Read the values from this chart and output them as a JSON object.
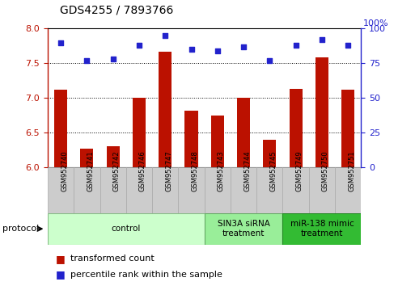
{
  "title": "GDS4255 / 7893766",
  "samples": [
    "GSM952740",
    "GSM952741",
    "GSM952742",
    "GSM952746",
    "GSM952747",
    "GSM952748",
    "GSM952743",
    "GSM952744",
    "GSM952745",
    "GSM952749",
    "GSM952750",
    "GSM952751"
  ],
  "transformed_count": [
    7.12,
    6.27,
    6.3,
    7.0,
    7.67,
    6.82,
    6.75,
    7.0,
    6.4,
    7.13,
    7.58,
    7.12
  ],
  "percentile_rank": [
    90,
    77,
    78,
    88,
    95,
    85,
    84,
    87,
    77,
    88,
    92,
    88
  ],
  "groups": [
    {
      "label": "control",
      "start": 0,
      "end": 5,
      "color": "#ccffcc",
      "border": "#88bb88"
    },
    {
      "label": "SIN3A siRNA\ntreatment",
      "start": 6,
      "end": 8,
      "color": "#99ee99",
      "border": "#66aa66"
    },
    {
      "label": "miR-138 mimic\ntreatment",
      "start": 9,
      "end": 11,
      "color": "#33bb33",
      "border": "#228822"
    }
  ],
  "ylim_left": [
    6.0,
    8.0
  ],
  "ylim_right": [
    0,
    100
  ],
  "yticks_left": [
    6.0,
    6.5,
    7.0,
    7.5,
    8.0
  ],
  "yticks_right": [
    0,
    25,
    50,
    75,
    100
  ],
  "bar_color": "#bb1100",
  "dot_color": "#2222cc",
  "bar_width": 0.5,
  "bg_color": "#ffffff",
  "left_axis_color": "#bb1100",
  "right_axis_color": "#2222cc",
  "title_fontsize": 10,
  "tick_fontsize": 8,
  "sample_fontsize": 6,
  "group_fontsize": 7.5,
  "legend_fontsize": 8
}
